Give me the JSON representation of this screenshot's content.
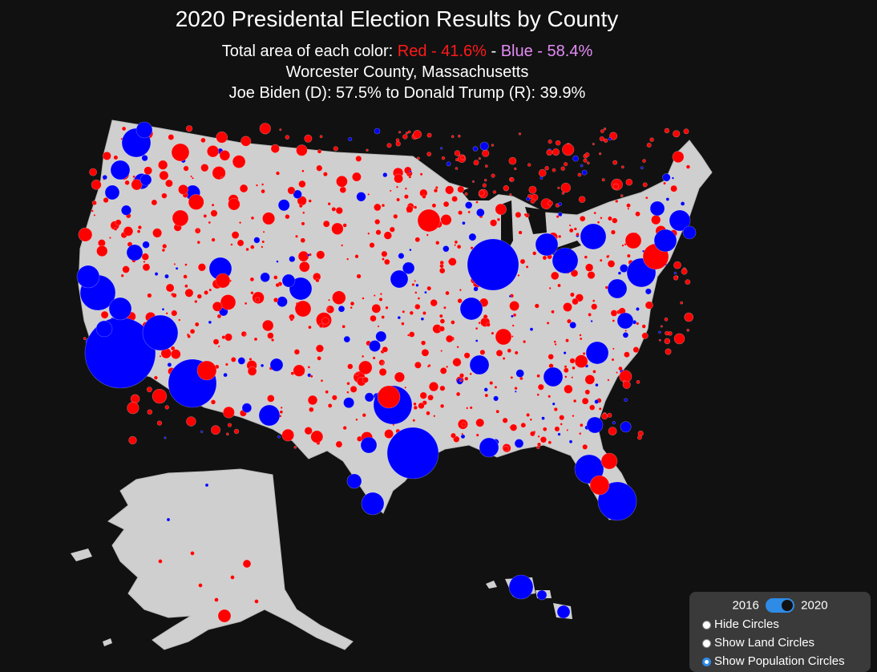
{
  "title": "2020 Presidental Election Results by County",
  "area_line": {
    "prefix": "Total area of each color: ",
    "red": "Red - 41.6%",
    "sep": " - ",
    "blue": "Blue - 58.4%"
  },
  "county": "Worcester County, Massachusetts",
  "result": "Joe Biden (D): 57.5% to Donald Trump (R): 39.9%",
  "controls": {
    "year_left": "2016",
    "year_right": "2020",
    "year_selected": "2020",
    "options": [
      {
        "label": "Hide Circles",
        "checked": false
      },
      {
        "label": "Show Land Circles",
        "checked": false
      },
      {
        "label": "Show Population Circles",
        "checked": true
      }
    ]
  },
  "colors": {
    "background": "#111111",
    "land": "#cfcfcf",
    "republican": "#ff0000",
    "democrat": "#0000ff",
    "panel": "#3a3a3a",
    "toggle": "#2e8be6"
  }
}
